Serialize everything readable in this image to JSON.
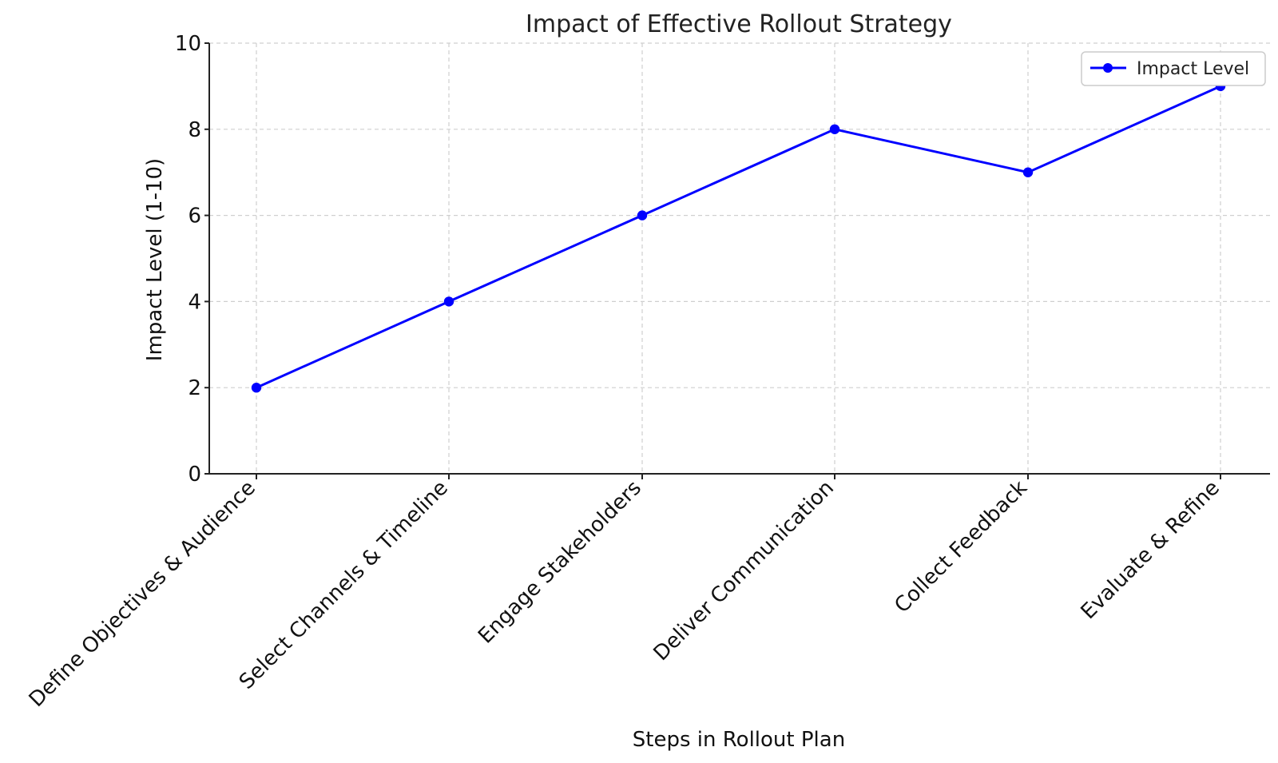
{
  "chart_data": {
    "type": "line",
    "title": "Impact of Effective Rollout Strategy",
    "xlabel": "Steps in Rollout Plan",
    "ylabel": "Impact Level (1-10)",
    "categories": [
      "Define Objectives & Audience",
      "Select Channels & Timeline",
      "Engage Stakeholders",
      "Deliver Communication",
      "Collect Feedback",
      "Evaluate & Refine"
    ],
    "series": [
      {
        "name": "Impact Level",
        "values": [
          2,
          4,
          6,
          8,
          7,
          9
        ],
        "color": "#0000ff"
      }
    ],
    "ylim": [
      0,
      10
    ],
    "yticks": [
      0,
      2,
      4,
      6,
      8,
      10
    ],
    "grid": true,
    "legend": "top-right"
  }
}
